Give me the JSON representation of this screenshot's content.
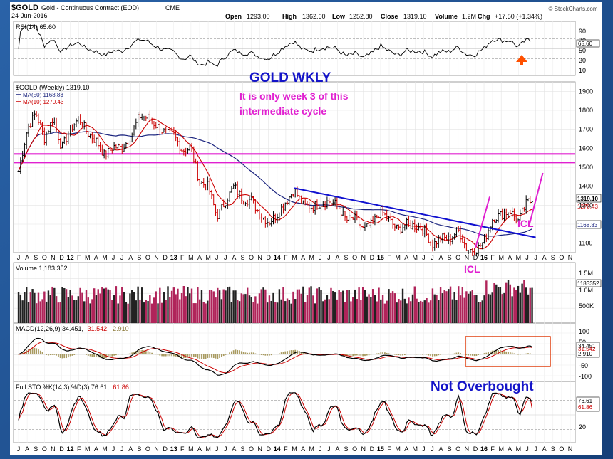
{
  "header": {
    "symbol": "$GOLD",
    "description": "Gold - Continuous Contract (EOD)",
    "exchange": "CME",
    "date": "24-Jun-2016",
    "open_label": "Open",
    "open": "1293.00",
    "high_label": "High",
    "high": "1362.60",
    "low_label": "Low",
    "low": "1252.80",
    "close_label": "Close",
    "close": "1319.10",
    "volume_label": "Volume",
    "volume": "1.2M",
    "chg_label": "Chg",
    "chg": "+17.50 (+1.34%)",
    "source": "© StockCharts.com"
  },
  "annotations": {
    "title": "GOLD WKLY",
    "note_line1": "It is only week 3 of this",
    "note_line2": "intermediate cycle",
    "icl_label": "ICL",
    "not_overbought": "Not Overbought"
  },
  "colors": {
    "gold_line": "#000000",
    "up_bar": "#000000",
    "down_bar": "#cc0000",
    "ma50": "#1a237e",
    "ma10": "#cc0000",
    "magenta": "#e020d0",
    "trendline": "#1010d0",
    "annotation_blue": "#1414c8",
    "volume_up": "#222222",
    "volume_down": "#b0245a",
    "macd_box": "#e04010",
    "arrow": "#ff5000"
  },
  "x_axis": {
    "labels": [
      "J",
      "A",
      "S",
      "O",
      "N",
      "D",
      "12",
      "F",
      "M",
      "A",
      "M",
      "J",
      "J",
      "A",
      "S",
      "O",
      "N",
      "D",
      "13",
      "F",
      "M",
      "A",
      "M",
      "J",
      "J",
      "A",
      "S",
      "O",
      "N",
      "D",
      "14",
      "F",
      "M",
      "A",
      "M",
      "J",
      "J",
      "A",
      "S",
      "O",
      "N",
      "D",
      "15",
      "F",
      "M",
      "A",
      "M",
      "J",
      "J",
      "A",
      "S",
      "O",
      "N",
      "D",
      "16",
      "F",
      "M",
      "A",
      "M",
      "J",
      "J",
      "A",
      "S",
      "O",
      "N"
    ]
  },
  "panels": {
    "rsi": {
      "label": "RSI(14) 65.60",
      "ticks": [
        "90",
        "70",
        "50",
        "30",
        "10"
      ],
      "value_tag": "65.60"
    },
    "price": {
      "label": "$GOLD (Weekly) 1319.10",
      "ma50_label": "MA(50) 1168.83",
      "ma10_label": "MA(10) 1270.43",
      "ticks": [
        "1900",
        "1800",
        "1700",
        "1600",
        "1500",
        "1400",
        "1300",
        "1200",
        "1100"
      ],
      "tags": [
        "1319.10",
        "1270.43",
        "1168.83"
      ]
    },
    "volume": {
      "label": "Volume 1,183,352",
      "ticks": [
        "1.5M",
        "1.0M",
        "500K"
      ],
      "value_tag": "1183352"
    },
    "macd": {
      "label_main": "MACD(12,26,9) 34.451,",
      "label_signal": "31.542,",
      "label_hist": "2.910",
      "ticks": [
        "100",
        "50",
        "-50",
        "-100"
      ],
      "tags": [
        "34.451",
        "31.542",
        "2.910"
      ]
    },
    "sto": {
      "label_main": "Full STO %K(14,3) %D(3) 76.61,",
      "label_d": "61.86",
      "ticks": [
        "80",
        "20"
      ],
      "tags": [
        "76.61",
        "61.86"
      ]
    }
  },
  "chart_data": {
    "type": "line",
    "title": "$GOLD (Weekly)",
    "x_unit": "weeks (Jul 2011 – Jun 2016)",
    "price_anchors": [
      {
        "x": "2011-07",
        "y": 1480
      },
      {
        "x": "2011-08",
        "y": 1700
      },
      {
        "x": "2011-09",
        "y": 1790
      },
      {
        "x": "2011-10",
        "y": 1650
      },
      {
        "x": "2011-11",
        "y": 1760
      },
      {
        "x": "2011-12",
        "y": 1600
      },
      {
        "x": "2012-01",
        "y": 1700
      },
      {
        "x": "2012-02",
        "y": 1760
      },
      {
        "x": "2012-03",
        "y": 1680
      },
      {
        "x": "2012-04",
        "y": 1640
      },
      {
        "x": "2012-05",
        "y": 1560
      },
      {
        "x": "2012-06",
        "y": 1610
      },
      {
        "x": "2012-07",
        "y": 1600
      },
      {
        "x": "2012-08",
        "y": 1660
      },
      {
        "x": "2012-09",
        "y": 1770
      },
      {
        "x": "2012-10",
        "y": 1760
      },
      {
        "x": "2012-11",
        "y": 1720
      },
      {
        "x": "2012-12",
        "y": 1680
      },
      {
        "x": "2013-01",
        "y": 1670
      },
      {
        "x": "2013-02",
        "y": 1590
      },
      {
        "x": "2013-03",
        "y": 1600
      },
      {
        "x": "2013-04",
        "y": 1420
      },
      {
        "x": "2013-05",
        "y": 1400
      },
      {
        "x": "2013-06",
        "y": 1240
      },
      {
        "x": "2013-07",
        "y": 1320
      },
      {
        "x": "2013-08",
        "y": 1400
      },
      {
        "x": "2013-09",
        "y": 1330
      },
      {
        "x": "2013-10",
        "y": 1330
      },
      {
        "x": "2013-11",
        "y": 1250
      },
      {
        "x": "2013-12",
        "y": 1210
      },
      {
        "x": "2014-01",
        "y": 1250
      },
      {
        "x": "2014-02",
        "y": 1320
      },
      {
        "x": "2014-03",
        "y": 1380
      },
      {
        "x": "2014-04",
        "y": 1300
      },
      {
        "x": "2014-05",
        "y": 1290
      },
      {
        "x": "2014-06",
        "y": 1310
      },
      {
        "x": "2014-07",
        "y": 1320
      },
      {
        "x": "2014-08",
        "y": 1300
      },
      {
        "x": "2014-09",
        "y": 1220
      },
      {
        "x": "2014-10",
        "y": 1230
      },
      {
        "x": "2014-11",
        "y": 1170
      },
      {
        "x": "2014-12",
        "y": 1200
      },
      {
        "x": "2015-01",
        "y": 1270
      },
      {
        "x": "2015-02",
        "y": 1220
      },
      {
        "x": "2015-03",
        "y": 1170
      },
      {
        "x": "2015-04",
        "y": 1200
      },
      {
        "x": "2015-05",
        "y": 1190
      },
      {
        "x": "2015-06",
        "y": 1175
      },
      {
        "x": "2015-07",
        "y": 1090
      },
      {
        "x": "2015-08",
        "y": 1130
      },
      {
        "x": "2015-09",
        "y": 1120
      },
      {
        "x": "2015-10",
        "y": 1170
      },
      {
        "x": "2015-11",
        "y": 1070
      },
      {
        "x": "2015-12",
        "y": 1060
      },
      {
        "x": "2016-01",
        "y": 1110
      },
      {
        "x": "2016-02",
        "y": 1230
      },
      {
        "x": "2016-03",
        "y": 1250
      },
      {
        "x": "2016-04",
        "y": 1270
      },
      {
        "x": "2016-05",
        "y": 1215
      },
      {
        "x": "2016-06",
        "y": 1319
      }
    ],
    "ma10_last": 1270.43,
    "ma50_last": 1168.83,
    "horizontal_lines": [
      1570,
      1525
    ],
    "trendline": {
      "start": {
        "x": "2014-03",
        "y": 1390
      },
      "end": {
        "x": "2016-07",
        "y": 1130
      }
    },
    "ylim": [
      1050,
      1950
    ],
    "rsi_last": 65.6,
    "macd_last": {
      "macd": 34.451,
      "signal": 31.542,
      "hist": 2.91
    },
    "sto_last": {
      "k": 76.61,
      "d": 61.86
    },
    "volume_last": 1183352
  }
}
